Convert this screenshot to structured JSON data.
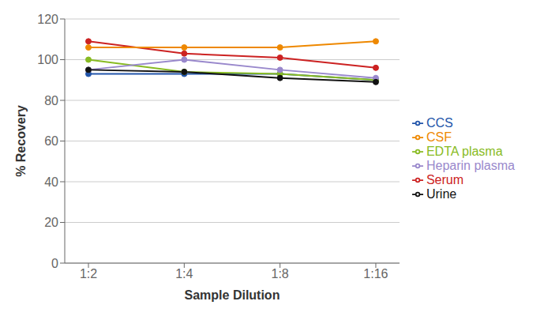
{
  "chart_data": {
    "type": "line",
    "xlabel": "Sample Dilution",
    "ylabel": "% Recovery",
    "categories": [
      "1:2",
      "1:4",
      "1:8",
      "1:16"
    ],
    "series": [
      {
        "name": "CCS",
        "color": "#2255aa",
        "marker": "circle",
        "values": [
          93,
          93,
          93,
          90
        ]
      },
      {
        "name": "Serum",
        "color": "#cc2222",
        "marker": "circle",
        "values": [
          109,
          103,
          101,
          96
        ]
      },
      {
        "name": "EDTA plasma",
        "color": "#88bb22",
        "marker": "circle",
        "values": [
          100,
          94,
          93,
          90
        ]
      },
      {
        "name": "Heparin plasma",
        "color": "#9988cc",
        "marker": "circle",
        "values": [
          95,
          100,
          95,
          91
        ]
      },
      {
        "name": "Urine",
        "color": "#111111",
        "marker": "circle",
        "values": [
          95,
          94,
          91,
          89
        ]
      },
      {
        "name": "CSF",
        "color": "#ee8800",
        "marker": "circle",
        "values": [
          106,
          106,
          106,
          109
        ]
      }
    ],
    "ylim": [
      0,
      120
    ],
    "yticks": [
      0,
      20,
      40,
      60,
      80,
      100,
      120
    ],
    "grid": "y",
    "legend": "right"
  }
}
